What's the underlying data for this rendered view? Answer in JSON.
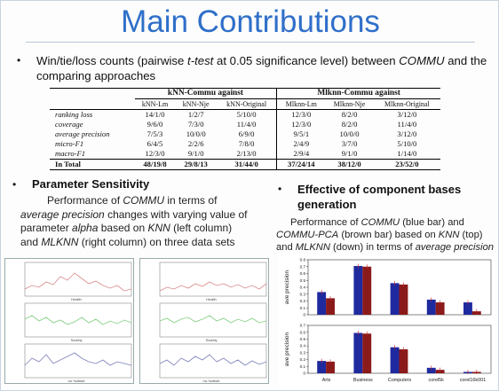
{
  "slide": {
    "title": "Main Contributions",
    "bullet_main": {
      "p1": "Win/tie/loss counts (pairwise ",
      "p2": "t-test",
      "p3": " at 0.05 significance level) between ",
      "p4": "COMMU",
      "p5": " and the comparing approaches"
    }
  },
  "table": {
    "group_knn": "kNN-Commu against",
    "group_mlknn": "Mlknn-Commu against",
    "subheaders": [
      "kNN-Lm",
      "kNN-Nje",
      "kNN-Original",
      "Mlknn-Lm",
      "Mlknn-Nje",
      "Mlknn-Original"
    ],
    "rows": [
      {
        "metric": "ranking loss",
        "cells": [
          "14/1/0",
          "1/2/7",
          "5/10/0",
          "12/3/0",
          "8/2/0",
          "3/12/0"
        ]
      },
      {
        "metric": "coverage",
        "cells": [
          "9/6/0",
          "7/3/0",
          "11/4/0",
          "12/3/0",
          "8/2/0",
          "11/4/0"
        ]
      },
      {
        "metric": "average precision",
        "cells": [
          "7/5/3",
          "10/0/0",
          "6/9/0",
          "9/5/1",
          "10/0/0",
          "3/12/0"
        ]
      },
      {
        "metric": "micro-F1",
        "cells": [
          "6/4/5",
          "2/2/6",
          "7/8/0",
          "2/4/9",
          "3/7/0",
          "5/10/0"
        ]
      },
      {
        "metric": "macro-F1",
        "cells": [
          "12/3/0",
          "9/1/0",
          "2/13/0",
          "2/9/4",
          "9/1/0",
          "1/14/0"
        ]
      }
    ],
    "total": {
      "label": "In Total",
      "cells": [
        "48/19/8",
        "29/8/13",
        "31/44/0",
        "37/24/14",
        "38/12/0",
        "23/52/0"
      ]
    }
  },
  "sensitivity": {
    "heading": "Parameter Sensitivity",
    "d1": "Performance of ",
    "d2": "COMMU",
    "d3": " in terms of",
    "d4": "average precision",
    "d5": " changes with varying value of",
    "d6": "parameter ",
    "d7": "alpha",
    "d8": " based on ",
    "d9": "KNN",
    "d10": " (left column)",
    "d11": "and ",
    "d12": "MLKNN",
    "d13": " (right column) on three data sets"
  },
  "bases": {
    "heading": "Effective of component bases generation",
    "d1": "Performance of ",
    "d2": "COMMU",
    "d3": " (blue bar) and",
    "d4": "COMMU-PCA",
    "d5": " (brown bar) based on ",
    "d6": "KNN",
    "d7": " (top)",
    "d8": "and ",
    "d9": "MLKNN",
    "d10": " (down) in terms of ",
    "d11": "average precision"
  },
  "line_panels": {
    "ylabel": "average precision",
    "xlabel_bottom": "no.*subset",
    "names": [
      "Health",
      "Society"
    ],
    "colors": [
      "#d98a8a",
      "#7fcf7f",
      "#7b7fb8"
    ]
  },
  "chart_data": {
    "type": "bar",
    "categories": [
      "Arts",
      "Business",
      "Computers",
      "corel5k",
      "corel16k001"
    ],
    "ylabel": "avg precision",
    "colors": {
      "commu": "#1f2a9e",
      "commu_pca": "#8b1a1a"
    },
    "panels": [
      {
        "ylabel": "ave precision",
        "ylim": [
          0,
          0.8
        ],
        "ticks": [
          0,
          0.1,
          0.2,
          0.3,
          0.4,
          0.5,
          0.6,
          0.7,
          0.8
        ],
        "series": [
          {
            "name": "COMMU",
            "values": [
              0.33,
              0.71,
              0.46,
              0.22,
              0.18
            ]
          },
          {
            "name": "COMMU-PCA",
            "values": [
              0.24,
              0.7,
              0.44,
              0.18,
              0.05
            ]
          }
        ]
      },
      {
        "ylabel": "ave precision",
        "ylim": [
          0,
          0.7
        ],
        "ticks": [
          0,
          0.1,
          0.2,
          0.3,
          0.4,
          0.5,
          0.6,
          0.7
        ],
        "series": [
          {
            "name": "COMMU",
            "values": [
              0.18,
              0.59,
              0.38,
              0.08,
              0.02
            ]
          },
          {
            "name": "COMMU-PCA",
            "values": [
              0.17,
              0.58,
              0.35,
              0.05,
              0.02
            ]
          }
        ]
      }
    ]
  }
}
